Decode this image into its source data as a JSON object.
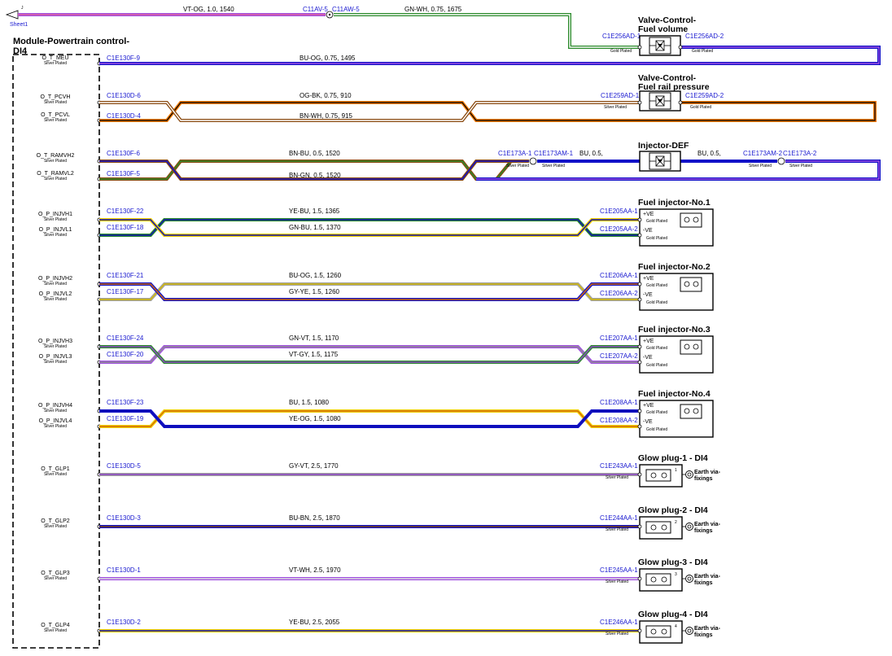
{
  "sheet_ref": {
    "letter": "J",
    "label": "Sheet1"
  },
  "module": {
    "title_line1": "Module-Powertrain control-",
    "title_line2": "DI4",
    "pins": [
      {
        "name": "O_T_MEU",
        "plating": "Silver Plated"
      },
      {
        "name": "O_T_PCVH",
        "plating": "Silver Plated"
      },
      {
        "name": "O_T_PCVL",
        "plating": "Silver Plated"
      },
      {
        "name": "O_T_RAMVH2",
        "plating": "Silver Plated"
      },
      {
        "name": "O_T_RAMVL2",
        "plating": "Silver Plated"
      },
      {
        "name": "O_P_INJVH1",
        "plating": "Silver Plated"
      },
      {
        "name": "O_P_INJVL1",
        "plating": "Silver Plated"
      },
      {
        "name": "O_P_INJVH2",
        "plating": "Silver Plated"
      },
      {
        "name": "O_P_INJVL2",
        "plating": "Silver Plated"
      },
      {
        "name": "O_P_INJVH3",
        "plating": "Silver Plated"
      },
      {
        "name": "O_P_INJVL3",
        "plating": "Silver Plated"
      },
      {
        "name": "O_P_INJVH4",
        "plating": "Silver Plated"
      },
      {
        "name": "O_P_INJVL4",
        "plating": "Silver Plated"
      },
      {
        "name": "O_T_GLP1",
        "plating": "Silver Plated"
      },
      {
        "name": "O_T_GLP2",
        "plating": "Silver Plated"
      },
      {
        "name": "O_T_GLP3",
        "plating": "Silver Plated"
      },
      {
        "name": "O_T_GLP4",
        "plating": "Silver Plated"
      }
    ]
  },
  "top_wires": {
    "w1": "VT-OG,  1.0,  1540",
    "splice_a": "C11AV-5",
    "splice_b": "C11AW-5",
    "w2": "GN-WH,  0.75,  1675"
  },
  "valve_fuel_volume": {
    "title_line1": "Valve-Control-",
    "title_line2": "Fuel volume",
    "conn_left": "C1E256AD-1",
    "conn_right": "C1E256AD-2",
    "plating_left": "Gold Plated",
    "plating_right": "Gold Plated"
  },
  "meu_wire": {
    "from": "C1E130F-9",
    "spec": "BU-OG,  0.75,  1495"
  },
  "valve_rail_pressure": {
    "title_line1": "Valve-Control-",
    "title_line2": "Fuel rail pressure",
    "conn_left": "C1E259AD-1",
    "conn_right": "C1E259AD-2",
    "plating_left": "Silver Plated",
    "plating_right": "Gold Plated"
  },
  "pcv_wires": {
    "a_from": "C1E130D-6",
    "a_spec": "OG-BK,  0.75,  910",
    "b_from": "C1E130D-4",
    "b_spec": "BN-WH,  0.75,  915"
  },
  "injector_def": {
    "title": "Injector-DEF",
    "a_from": "C1E130F-6",
    "a_spec": "BN-BU,  0.5,  1520",
    "b_from": "C1E130F-5",
    "b_spec": "BN-GN,  0.5,  1520",
    "left_c1": "C1E173A-1",
    "left_c2": "C1E173AM-1",
    "left_spec": "BU,  0.5,",
    "right_spec": "BU,  0.5,",
    "right_c1": "C1E173AM-2",
    "right_c2": "C1E173A-2",
    "plating_1": "Silver Plated",
    "plating_2": "Silver Plated",
    "plating_3": "Silver Plated",
    "plating_4": "Silver Plated"
  },
  "fuel_injectors": [
    {
      "title": "Fuel injector-No.1",
      "a_from": "C1E130F-22",
      "a_spec": "YE-BU,  1.5,  1365",
      "b_from": "C1E130F-18",
      "b_spec": "GN-BU,  1.5,  1370",
      "conn_a": "C1E205AA-1",
      "conn_b": "C1E205AA-2",
      "pin_a": "+VE",
      "pin_b": "-VE",
      "plating_a": "Gold Plated",
      "plating_b": "Gold Plated"
    },
    {
      "title": "Fuel injector-No.2",
      "a_from": "C1E130F-21",
      "a_spec": "BU-OG,  1.5,  1260",
      "b_from": "C1E130F-17",
      "b_spec": "GY-YE,  1.5,  1260",
      "conn_a": "C1E206AA-1",
      "conn_b": "C1E206AA-2",
      "pin_a": "+VE",
      "pin_b": "-VE",
      "plating_a": "Gold Plated",
      "plating_b": "Gold Plated"
    },
    {
      "title": "Fuel injector-No.3",
      "a_from": "C1E130F-24",
      "a_spec": "GN-VT,  1.5,  1170",
      "b_from": "C1E130F-20",
      "b_spec": "VT-GY,  1.5,  1175",
      "conn_a": "C1E207AA-1",
      "conn_b": "C1E207AA-2",
      "pin_a": "+VE",
      "pin_b": "-VE",
      "plating_a": "Gold Plated",
      "plating_b": "Gold Plated"
    },
    {
      "title": "Fuel injector-No.4",
      "a_from": "C1E130F-23",
      "a_spec": "BU,  1.5,  1080",
      "b_from": "C1E130F-19",
      "b_spec": "YE-OG,  1.5,  1080",
      "conn_a": "C1E208AA-1",
      "conn_b": "C1E208AA-2",
      "pin_a": "+VE",
      "pin_b": "-VE",
      "plating_a": "Gold Plated",
      "plating_b": "Gold Plated"
    }
  ],
  "glow_plugs": [
    {
      "title": "Glow plug-1 - DI4",
      "from": "C1E130D-5",
      "spec": "GY-VT,  2.5,  1770",
      "conn": "C1E243AA-1",
      "plating": "Silver Plated",
      "num": "1",
      "earth_1": "Earth via-",
      "earth_2": "fixings"
    },
    {
      "title": "Glow plug-2 - DI4",
      "from": "C1E130D-3",
      "spec": "BU-BN,  2.5,  1870",
      "conn": "C1E244AA-1",
      "plating": "Silver Plated",
      "num": "2",
      "earth_1": "Earth via-",
      "earth_2": "fixings"
    },
    {
      "title": "Glow plug-3 - DI4",
      "from": "C1E130D-1",
      "spec": "VT-WH,  2.5,  1970",
      "conn": "C1E245AA-1",
      "plating": "Silver Plated",
      "num": "3",
      "earth_1": "Earth via-",
      "earth_2": "fixings"
    },
    {
      "title": "Glow plug-4 - DI4",
      "from": "C1E130D-2",
      "spec": "YE-BU,  2.5,  2055",
      "conn": "C1E246AA-1",
      "plating": "Silver Plated",
      "num": "4",
      "earth_1": "Earth via-",
      "earth_2": "fixings"
    }
  ],
  "colors": {
    "BU": "#1010c8",
    "OG": "#f07800",
    "BK": "#000000",
    "BN": "#8a4a10",
    "WH": "#ffffff",
    "GN": "#2a8a2a",
    "YE": "#f0d000",
    "VT": "#a050e0",
    "GY": "#a0a0a0",
    "PK": "#e060a0",
    "link": "#1a1ad0"
  }
}
